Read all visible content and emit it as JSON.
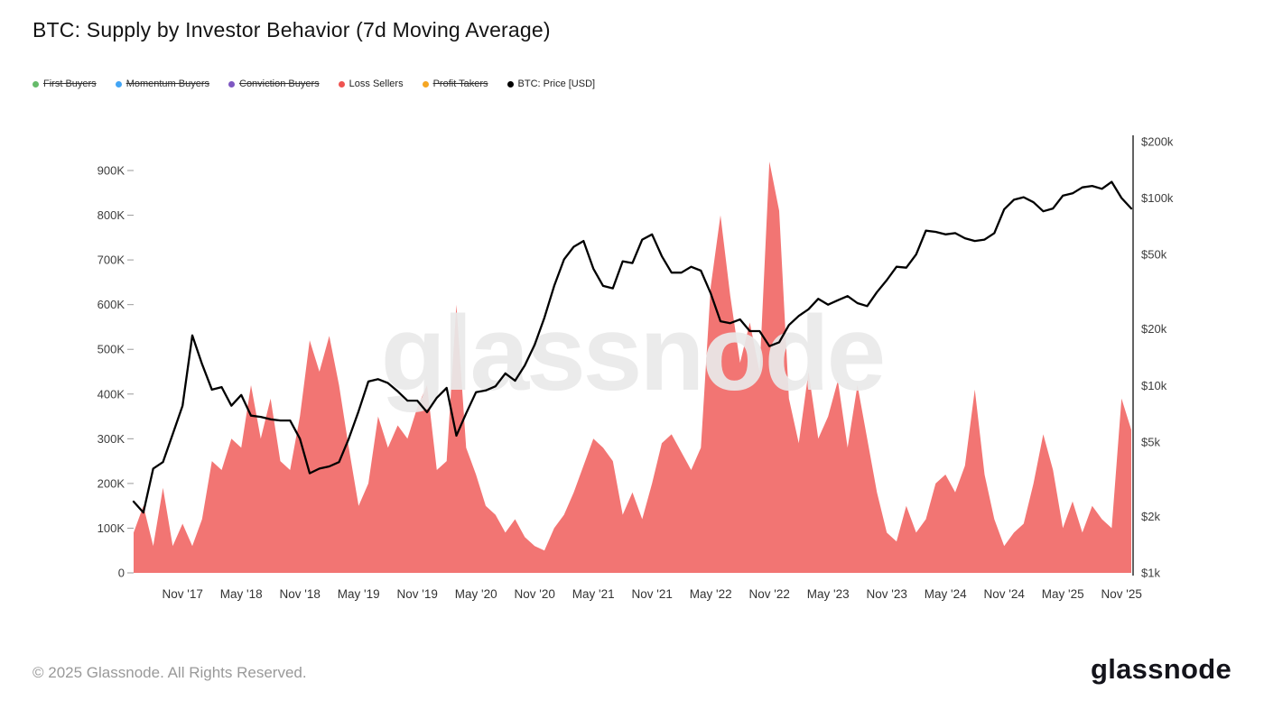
{
  "watermark": "glassnode",
  "footer": {
    "copyright": "© 2025 Glassnode. All Rights Reserved.",
    "logo": "glassnode"
  },
  "legend": [
    {
      "label": "First Buyers",
      "color": "#66bb6a",
      "disabled": true
    },
    {
      "label": "Momentum Buyers",
      "color": "#42a5f5",
      "disabled": true
    },
    {
      "label": "Conviction Buyers",
      "color": "#7e57c2",
      "disabled": true
    },
    {
      "label": "Loss Sellers",
      "color": "#ef5350",
      "disabled": false
    },
    {
      "label": "Profit Takers",
      "color": "#f5a623",
      "disabled": true
    },
    {
      "label": "BTC: Price [USD]",
      "color": "#000000",
      "disabled": false
    }
  ],
  "chart_data": {
    "type": "area+line",
    "title": "BTC: Supply by Investor Behavior (7d Moving Average)",
    "months": [
      "2017-06",
      "2017-07",
      "2017-08",
      "2017-09",
      "2017-10",
      "2017-11",
      "2017-12",
      "2018-01",
      "2018-02",
      "2018-03",
      "2018-04",
      "2018-05",
      "2018-06",
      "2018-07",
      "2018-08",
      "2018-09",
      "2018-10",
      "2018-11",
      "2018-12",
      "2019-01",
      "2019-02",
      "2019-03",
      "2019-04",
      "2019-05",
      "2019-06",
      "2019-07",
      "2019-08",
      "2019-09",
      "2019-10",
      "2019-11",
      "2019-12",
      "2020-01",
      "2020-02",
      "2020-03",
      "2020-04",
      "2020-05",
      "2020-06",
      "2020-07",
      "2020-08",
      "2020-09",
      "2020-10",
      "2020-11",
      "2020-12",
      "2021-01",
      "2021-02",
      "2021-03",
      "2021-04",
      "2021-05",
      "2021-06",
      "2021-07",
      "2021-08",
      "2021-09",
      "2021-10",
      "2021-11",
      "2021-12",
      "2022-01",
      "2022-02",
      "2022-03",
      "2022-04",
      "2022-05",
      "2022-06",
      "2022-07",
      "2022-08",
      "2022-09",
      "2022-10",
      "2022-11",
      "2022-12",
      "2023-01",
      "2023-02",
      "2023-03",
      "2023-04",
      "2023-05",
      "2023-06",
      "2023-07",
      "2023-08",
      "2023-09",
      "2023-10",
      "2023-11",
      "2023-12",
      "2024-01",
      "2024-02",
      "2024-03",
      "2024-04",
      "2024-05",
      "2024-06",
      "2024-07",
      "2024-08",
      "2024-09",
      "2024-10",
      "2024-11",
      "2024-12",
      "2025-01",
      "2025-02",
      "2025-03",
      "2025-04",
      "2025-05",
      "2025-06",
      "2025-07",
      "2025-08",
      "2025-09",
      "2025-10",
      "2025-11",
      "2025-12"
    ],
    "series": [
      {
        "name": "Loss Sellers",
        "type": "area",
        "axis": "left",
        "color": "#ef5350",
        "values_unit": "thousand BTC",
        "values": [
          90,
          150,
          60,
          190,
          60,
          110,
          60,
          120,
          250,
          230,
          300,
          280,
          420,
          300,
          390,
          250,
          230,
          350,
          520,
          450,
          530,
          420,
          280,
          150,
          200,
          350,
          280,
          330,
          300,
          370,
          420,
          230,
          250,
          600,
          280,
          220,
          150,
          130,
          90,
          120,
          80,
          60,
          50,
          100,
          130,
          180,
          240,
          300,
          280,
          250,
          130,
          180,
          120,
          200,
          290,
          310,
          270,
          230,
          280,
          640,
          800,
          620,
          470,
          560,
          450,
          920,
          810,
          390,
          290,
          450,
          300,
          350,
          430,
          280,
          420,
          300,
          180,
          90,
          70,
          150,
          90,
          120,
          200,
          220,
          180,
          240,
          410,
          220,
          120,
          60,
          90,
          110,
          200,
          310,
          230,
          100,
          160,
          90,
          150,
          120,
          100,
          390,
          320
        ]
      },
      {
        "name": "BTC: Price [USD]",
        "type": "line",
        "axis": "right",
        "color": "#000000",
        "values_unit": "USD",
        "values": [
          2400,
          2100,
          3600,
          3900,
          5500,
          7800,
          18500,
          13000,
          9500,
          9800,
          7800,
          8900,
          6900,
          6800,
          6600,
          6500,
          6500,
          5200,
          3400,
          3600,
          3700,
          3900,
          5200,
          7300,
          10500,
          10800,
          10300,
          9300,
          8300,
          8300,
          7200,
          8600,
          9700,
          5400,
          7100,
          9200,
          9400,
          9900,
          11600,
          10600,
          12800,
          16500,
          23000,
          34000,
          47000,
          55000,
          59000,
          42000,
          34000,
          33000,
          46000,
          45000,
          60000,
          64000,
          49000,
          40000,
          40000,
          43000,
          41000,
          31000,
          22000,
          21500,
          22500,
          19500,
          19500,
          16200,
          17000,
          21000,
          23500,
          25500,
          29000,
          27000,
          28500,
          30000,
          27500,
          26500,
          31500,
          36500,
          43000,
          42500,
          50000,
          67000,
          66000,
          64000,
          65000,
          61000,
          59000,
          60000,
          65000,
          87000,
          98000,
          101000,
          95000,
          85000,
          88000,
          103000,
          106000,
          114000,
          116000,
          112000,
          122000,
          100000,
          88000
        ]
      }
    ],
    "left_axis": {
      "unit": "thousand BTC",
      "ticks": [
        "900K",
        "800K",
        "700K",
        "600K",
        "500K",
        "400K",
        "300K",
        "200K",
        "100K",
        "0"
      ],
      "tick_values": [
        900,
        800,
        700,
        600,
        500,
        400,
        300,
        200,
        100,
        0
      ],
      "max": 980
    },
    "right_axis": {
      "scale": "log",
      "unit": "USD",
      "ticks": [
        "$200k",
        "$100k",
        "$50k",
        "$20k",
        "$10k",
        "$5k",
        "$2k",
        "$1k"
      ],
      "tick_values": [
        200000,
        100000,
        50000,
        20000,
        10000,
        5000,
        2000,
        1000
      ]
    },
    "x_axis": {
      "ticks": [
        "Nov '17",
        "May '18",
        "Nov '18",
        "May '19",
        "Nov '19",
        "May '20",
        "Nov '20",
        "May '21",
        "Nov '21",
        "May '22",
        "Nov '22",
        "May '23",
        "Nov '23",
        "May '24",
        "Nov '24",
        "May '25",
        "Nov '25"
      ],
      "tick_months": [
        "2017-11",
        "2018-05",
        "2018-11",
        "2019-05",
        "2019-11",
        "2020-05",
        "2020-11",
        "2021-05",
        "2021-11",
        "2022-05",
        "2022-11",
        "2023-05",
        "2023-11",
        "2024-05",
        "2024-11",
        "2025-05",
        "2025-11"
      ]
    },
    "grid": false,
    "legend_position": "top-left"
  }
}
